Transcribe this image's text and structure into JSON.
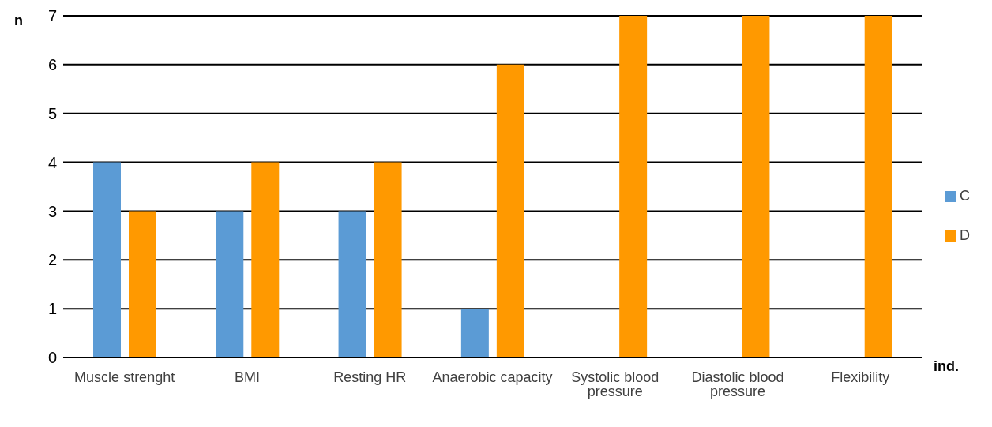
{
  "chart_data": {
    "type": "bar",
    "xlabel": "ind.",
    "ylabel": "n",
    "categories": [
      "Muscle strenght",
      "BMI",
      "Resting HR",
      "Anaerobic capacity",
      "Systolic blood pressure",
      "Diastolic blood pressure",
      "Flexibility"
    ],
    "series": [
      {
        "name": "C",
        "color": "#5b9bd5",
        "values": [
          4,
          3,
          3,
          1,
          0,
          0,
          0
        ]
      },
      {
        "name": "D",
        "color": "#ff9900",
        "values": [
          3,
          4,
          4,
          6,
          7,
          7,
          7
        ]
      }
    ],
    "ylim": [
      0,
      7
    ],
    "yticks": [
      0,
      1,
      2,
      3,
      4,
      5,
      6,
      7
    ],
    "grid": "y",
    "legend": "right"
  }
}
